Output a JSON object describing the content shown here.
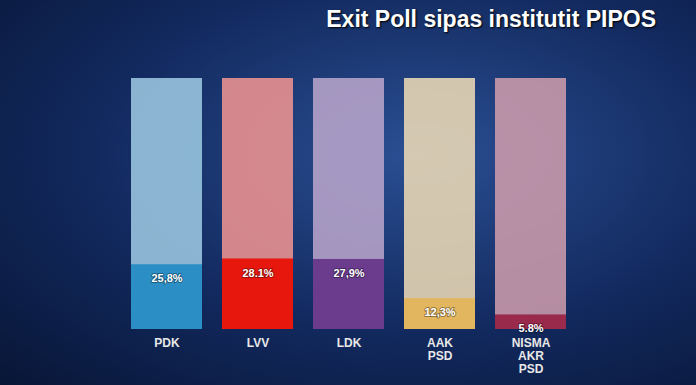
{
  "chart_data": {
    "type": "bar",
    "title": "Exit Poll sipas institutit PIPOS",
    "categories": [
      "PDK",
      "LVV",
      "LDK",
      "AAK\nPSD",
      "NISMA\nAKR\nPSD"
    ],
    "values": [
      25.8,
      28.1,
      27.9,
      12.3,
      5.8
    ],
    "value_labels": [
      "25,8%",
      "28.1%",
      "27,9%",
      "12,3%",
      "5.8%"
    ],
    "colors": [
      "#2b8fc6",
      "#e8170d",
      "#6b3b8e",
      "#e2b65e",
      "#9a2a4c"
    ],
    "ylim": [
      0,
      100
    ],
    "tick_labels": "x",
    "data_labels": true
  }
}
